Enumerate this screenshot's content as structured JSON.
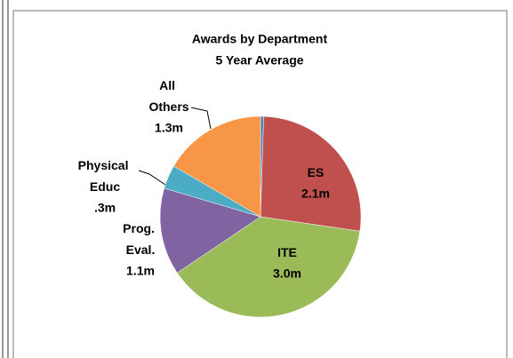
{
  "chart_data": {
    "type": "pie",
    "title": "Awards by Department",
    "subtitle": "5 Year Average",
    "categories": [
      null,
      "ES",
      "ITE",
      "Prog. Eval.",
      "Physical Educ",
      "All Others"
    ],
    "values": [
      0.04,
      2.1,
      3.0,
      1.1,
      0.3,
      1.3
    ],
    "value_labels": [
      null,
      "2.1m",
      "3.0m",
      "1.1m",
      ".3m",
      "1.3m"
    ],
    "colors": [
      "#4f81bd",
      "#c0504d",
      "#9bbb59",
      "#8064a2",
      "#4bacc6",
      "#f79646"
    ]
  }
}
